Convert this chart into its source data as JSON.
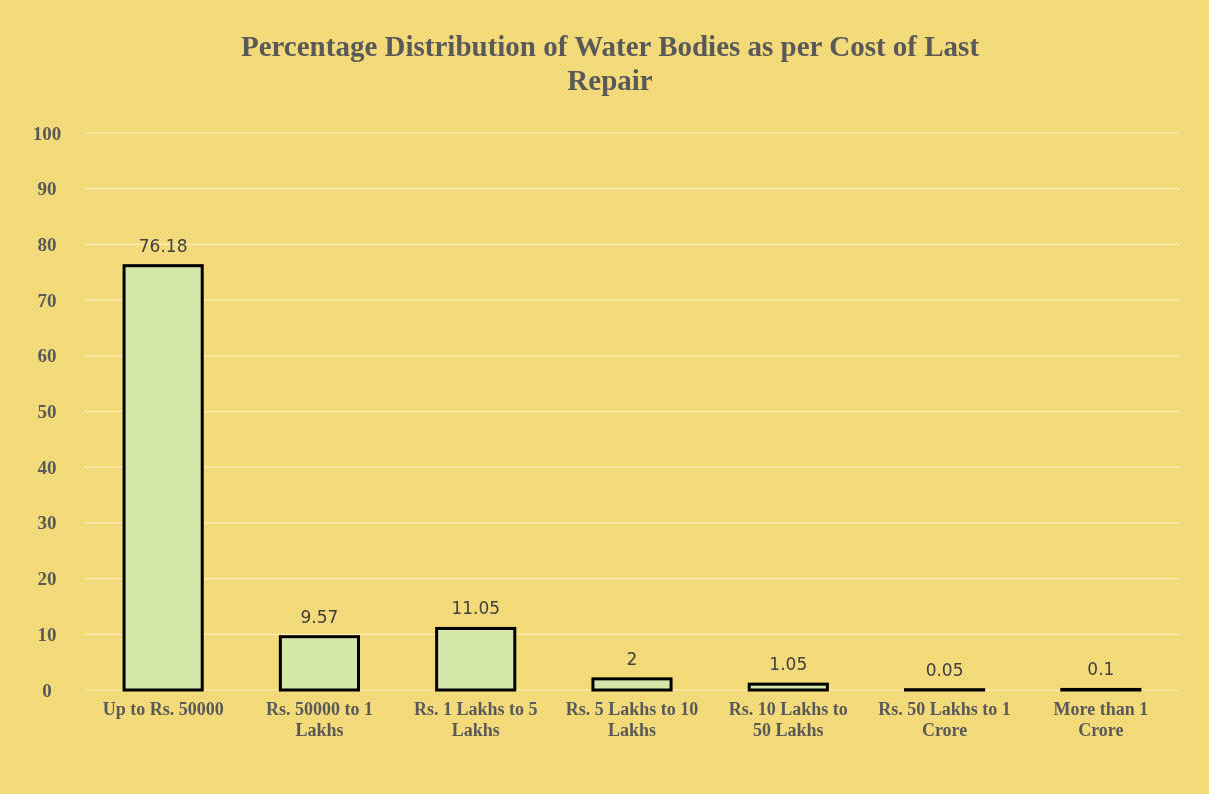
{
  "chart_data": {
    "type": "bar",
    "title": "Percentage Distribution of Water Bodies  as per Cost of Last Repair",
    "categories": [
      "Up to Rs. 50000",
      "Rs. 50000 to 1 Lakhs",
      "Rs. 1 Lakhs to 5 Lakhs",
      "Rs. 5 Lakhs to 10 Lakhs",
      "Rs. 10 Lakhs to 50 Lakhs",
      "Rs. 50 Lakhs to 1 Crore",
      "More than 1 Crore"
    ],
    "values": [
      76.18,
      9.57,
      11.05,
      2,
      1.05,
      0.05,
      0.1
    ],
    "color": "#d5e8a9",
    "ylim": [
      0,
      100
    ],
    "yticks": [
      0,
      10,
      20,
      30,
      40,
      50,
      60,
      70,
      80,
      90,
      100
    ],
    "grid": "y",
    "data_labels": true
  }
}
